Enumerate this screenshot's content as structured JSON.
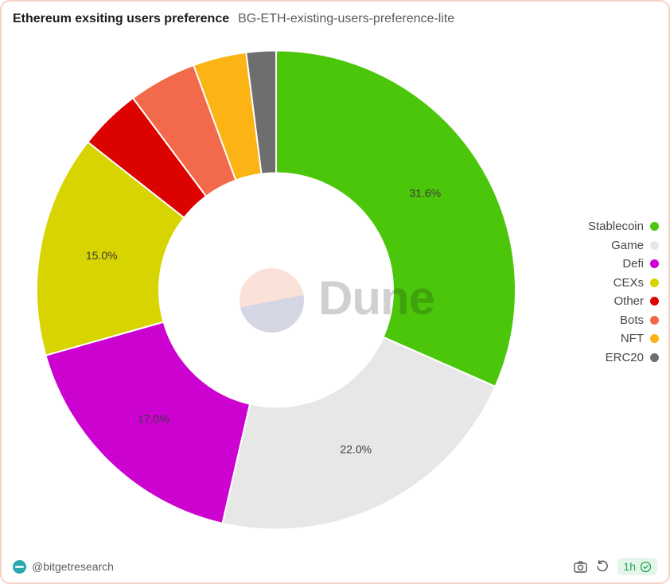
{
  "chart_data": {
    "type": "pie",
    "variant": "donut",
    "title": "Ethereum exsiting users preference",
    "subtitle": "BG-ETH-existing-users-preference-lite",
    "legend_position": "right",
    "start_angle": "12 o'clock, clockwise",
    "inner_radius_ratio": 0.49,
    "series": [
      {
        "name": "Stablecoin",
        "value": 31.6,
        "label": "31.6%",
        "color": "#4cc60a"
      },
      {
        "name": "Game",
        "value": 22.0,
        "label": "22.0%",
        "color": "#e7e7e7"
      },
      {
        "name": "Defi",
        "value": 17.0,
        "label": "17.0%",
        "color": "#cc02d1"
      },
      {
        "name": "CEXs",
        "value": 15.0,
        "label": "15.0%",
        "color": "#d7d401"
      },
      {
        "name": "Other",
        "value": 4.2,
        "label": "",
        "color": "#dc0200"
      },
      {
        "name": "Bots",
        "value": 4.6,
        "label": "",
        "color": "#f26a4b"
      },
      {
        "name": "NFT",
        "value": 3.6,
        "label": "",
        "color": "#fcb314"
      },
      {
        "name": "ERC20",
        "value": 2.0,
        "label": "",
        "color": "#6e6e6e"
      }
    ]
  },
  "watermark": {
    "text": "Dune"
  },
  "footer": {
    "handle": "@bitgetresearch",
    "freshness": "1h",
    "icons": {
      "avatar": "bitget-avatar",
      "camera": "camera-icon",
      "refresh": "refresh-icon",
      "verified": "check-badge-icon"
    }
  },
  "colors": {
    "card_border": "#f8d2c6",
    "pill_bg": "#e4f6e9",
    "pill_text": "#23a455",
    "avatar_bg": "#2ba7ae"
  }
}
